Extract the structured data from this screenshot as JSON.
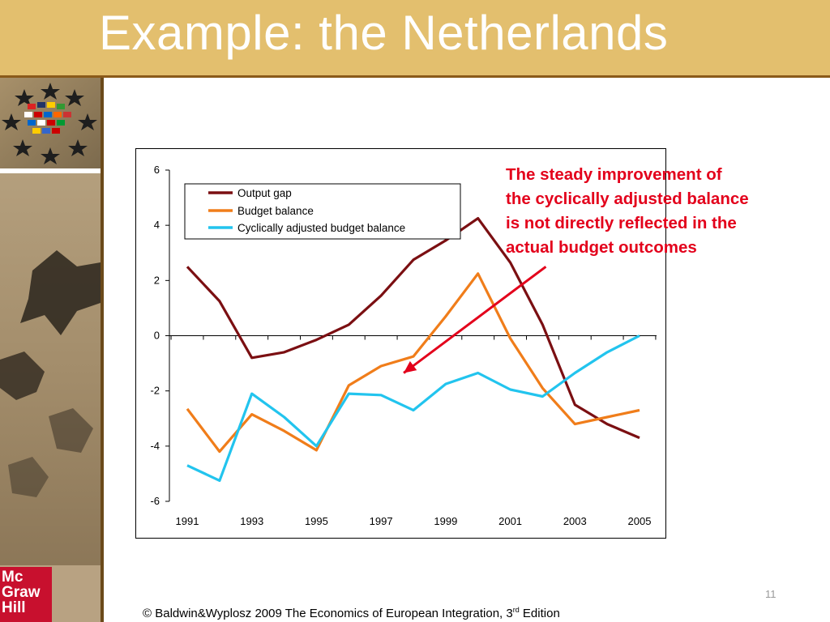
{
  "slide": {
    "title": "Example: the Netherlands",
    "page_number": "11",
    "footer": {
      "before": "© Baldwin&Wyplosz 2009 The Economics of European Integration, 3",
      "sup": "rd",
      "after": " Edition"
    },
    "logo_lines": [
      "Mc",
      "Graw",
      "Hill"
    ]
  },
  "annotation": {
    "lines": [
      "The steady improvement of",
      "the cyclically adjusted balance",
      "is not directly reflected in the",
      "actual budget outcomes"
    ],
    "color": "#e3001b"
  },
  "colors": {
    "header": "#e3bf6e",
    "output_gap": "#7b0f12",
    "budget_balance": "#f07d1a",
    "cyclically_adjusted": "#22c4ee",
    "arrow": "#e3001b"
  },
  "chart_data": {
    "type": "line",
    "x": [
      1991,
      1992,
      1993,
      1994,
      1995,
      1996,
      1997,
      1998,
      1999,
      2000,
      2001,
      2002,
      2003,
      2004,
      2005
    ],
    "x_tick_labels": [
      "1991",
      "1993",
      "1995",
      "1997",
      "1999",
      "2001",
      "2003",
      "2005"
    ],
    "ylim": [
      -6,
      6
    ],
    "y_ticks": [
      6,
      4,
      2,
      0,
      -2,
      -4,
      -6
    ],
    "grid": false,
    "legend": "top-left",
    "series": [
      {
        "name": "Output gap",
        "color": "#7b0f12",
        "values": [
          2.5,
          1.25,
          -0.8,
          -0.6,
          -0.15,
          0.4,
          1.45,
          2.75,
          3.45,
          4.25,
          2.65,
          0.4,
          -2.5,
          -3.2,
          -3.7
        ]
      },
      {
        "name": "Budget balance",
        "color": "#f07d1a",
        "values": [
          -2.65,
          -4.2,
          -2.85,
          -3.45,
          -4.15,
          -1.8,
          -1.1,
          -0.75,
          0.7,
          2.25,
          -0.1,
          -1.9,
          -3.2,
          -2.95,
          -2.7
        ]
      },
      {
        "name": "Cyclically adjusted budget balance",
        "color": "#22c4ee",
        "values": [
          -4.7,
          -5.25,
          -2.1,
          -2.95,
          -4.0,
          -2.1,
          -2.15,
          -2.7,
          -1.75,
          -1.35,
          -1.95,
          -2.2,
          -1.35,
          -0.6,
          0.0
        ]
      }
    ],
    "arrow": {
      "from": [
        2002.1,
        2.5
      ],
      "to": [
        1997.7,
        -1.35
      ]
    }
  }
}
